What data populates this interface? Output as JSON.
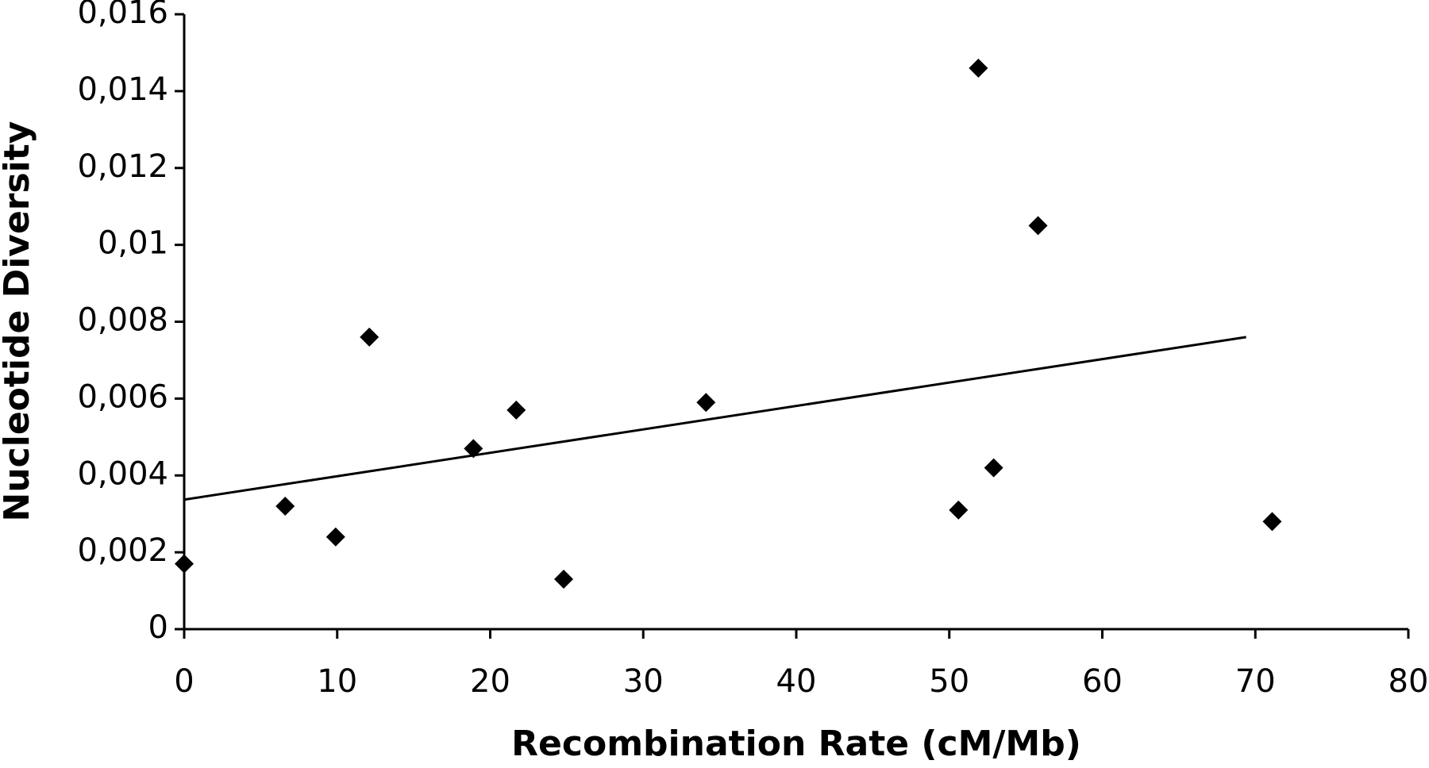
{
  "chart_data": {
    "type": "scatter",
    "x_label": "Recombination Rate (cM/Mb)",
    "y_label": "Nucleotide Diversity",
    "x": [
      0,
      6.6,
      9.9,
      12.1,
      18.9,
      21.7,
      24.8,
      34.1,
      50.6,
      51.9,
      52.9,
      55.8,
      71.1
    ],
    "values": [
      0.0017,
      0.0032,
      0.0024,
      0.0076,
      0.0047,
      0.0057,
      0.0013,
      0.0059,
      0.0031,
      0.0146,
      0.0042,
      0.0105,
      0.0028
    ],
    "color": "#000000",
    "trendline": {
      "x": [
        0,
        69.4
      ],
      "values": [
        0.00337,
        0.0076
      ]
    },
    "xlim": [
      0,
      80
    ],
    "xticks": [
      0,
      10,
      20,
      30,
      40,
      50,
      60,
      70,
      80
    ],
    "ylim": [
      0,
      0.016
    ],
    "yticks": [
      0,
      {
        "value": 0.002,
        "label": "0,002"
      },
      {
        "value": 0.004,
        "label": "0,004"
      },
      {
        "value": 0.006,
        "label": "0,006"
      },
      {
        "value": 0.008,
        "label": "0,008"
      },
      {
        "value": 0.01,
        "label": "0,01"
      },
      {
        "value": 0.012,
        "label": "0,012"
      },
      {
        "value": 0.014,
        "label": "0,014"
      },
      {
        "value": 0.016,
        "label": "0,016"
      }
    ]
  }
}
